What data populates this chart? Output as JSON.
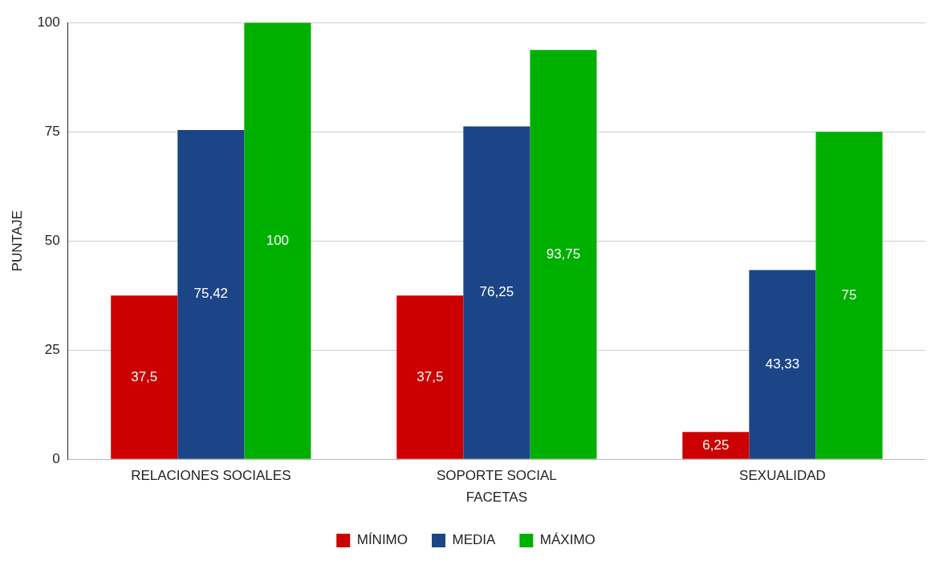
{
  "chart_data": {
    "type": "bar",
    "xlabel": "FACETAS",
    "ylabel": "PUNTAJE",
    "categories": [
      "RELACIONES SOCIALES",
      "SOPORTE SOCIAL",
      "SEXUALIDAD"
    ],
    "series": [
      {
        "name": "MÍNIMO",
        "color": "#cc0000",
        "values": [
          37.5,
          37.5,
          6.25
        ],
        "value_labels": [
          "37,5",
          "37,5",
          "6,25"
        ]
      },
      {
        "name": "MEDIA",
        "color": "#1c4587",
        "values": [
          75.42,
          76.25,
          43.33
        ],
        "value_labels": [
          "75,42",
          "76,25",
          "43,33"
        ]
      },
      {
        "name": "MÁXIMO",
        "color": "#00b000",
        "values": [
          100,
          93.75,
          75
        ],
        "value_labels": [
          "100",
          "93,75",
          "75"
        ]
      }
    ],
    "ylim": [
      0,
      100
    ],
    "yticks": [
      0,
      25,
      50,
      75,
      100
    ],
    "grid": "y",
    "legend": "bottom"
  }
}
